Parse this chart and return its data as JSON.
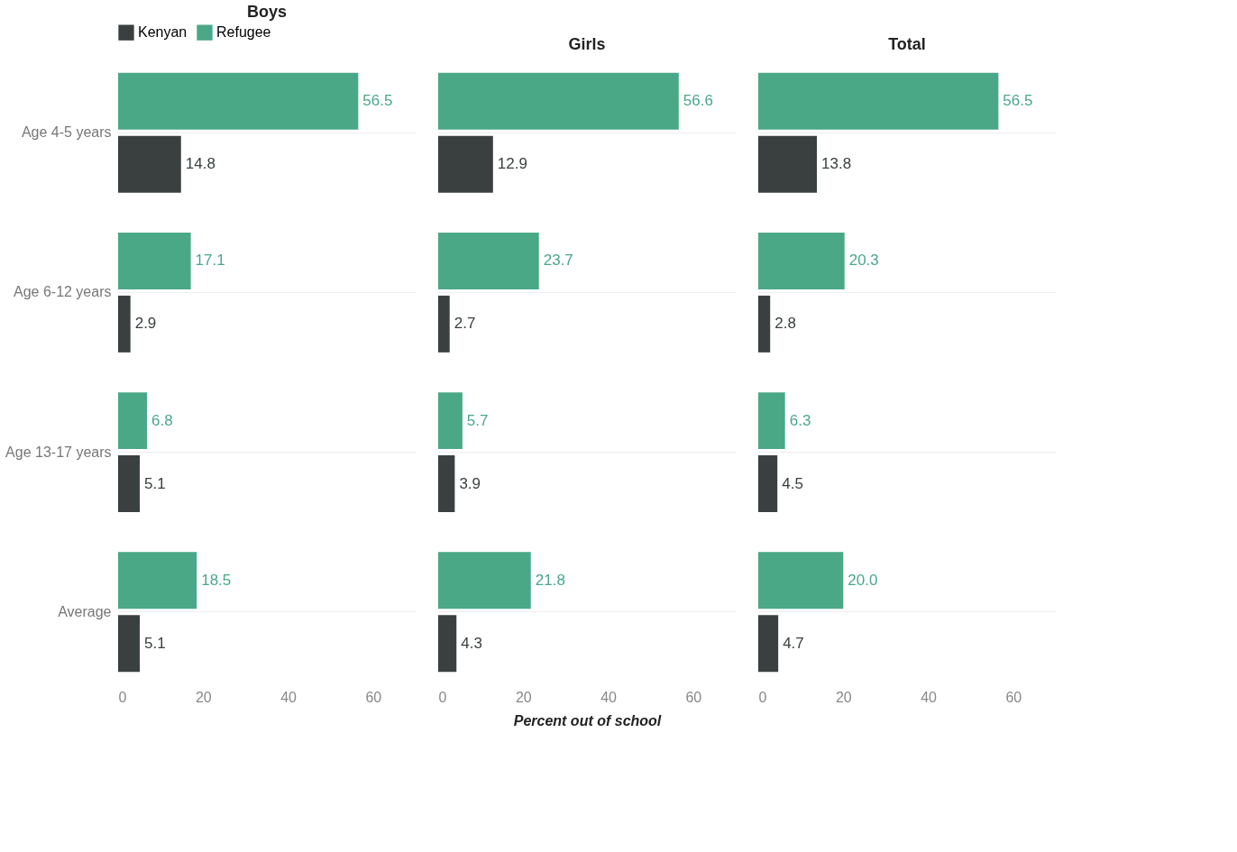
{
  "chart_data": [
    {
      "type": "bar",
      "title": "Boys",
      "orientation": "horizontal",
      "categories": [
        "Age 4-5 years",
        "Age 6-12 years",
        "Age 13-17 years",
        "Average"
      ],
      "xlim": [
        0,
        70
      ],
      "xticks": [
        0,
        20,
        40,
        60
      ],
      "grid": "y",
      "legend": "top left",
      "series": [
        {
          "name": "Kenyan",
          "color": "#3a4040",
          "values": [
            14.8,
            2.9,
            5.1,
            5.1
          ],
          "value_labels": [
            "14.8",
            "2.9",
            "5.1",
            "5.1"
          ]
        },
        {
          "name": "Refugee",
          "color": "#4aa887",
          "values": [
            56.5,
            17.1,
            6.8,
            18.5
          ],
          "value_labels": [
            "56.5",
            "17.1",
            "6.8",
            "18.5"
          ]
        }
      ]
    },
    {
      "type": "bar",
      "title": "Girls",
      "xlabel": "Percent out of school",
      "orientation": "horizontal",
      "tick_labels": "x",
      "categories": [
        null,
        null,
        null,
        null
      ],
      "xlim": [
        0,
        70
      ],
      "xticks": [
        0,
        20,
        40,
        60
      ],
      "grid": "y",
      "series": [
        {
          "color": "#3a4040",
          "values": [
            12.9,
            2.7,
            3.9,
            4.3
          ],
          "value_labels": [
            "12.9",
            "2.7",
            "3.9",
            "4.3"
          ]
        },
        {
          "color": "#4aa887",
          "values": [
            56.6,
            23.7,
            5.7,
            21.8
          ],
          "value_labels": [
            "56.6",
            "23.7",
            "5.7",
            "21.8"
          ]
        }
      ]
    },
    {
      "type": "bar",
      "title": "Total",
      "orientation": "horizontal",
      "tick_labels": "x",
      "categories": [
        null,
        null,
        null,
        null
      ],
      "xlim": [
        0,
        70
      ],
      "xticks": [
        0,
        20,
        40,
        60
      ],
      "grid": "y",
      "series": [
        {
          "color": "#3a4040",
          "values": [
            13.8,
            2.8,
            4.5,
            4.7
          ],
          "value_labels": [
            "13.8",
            "2.8",
            "4.5",
            "4.7"
          ]
        },
        {
          "color": "#4aa887",
          "values": [
            56.5,
            20.3,
            6.3,
            20.0
          ],
          "value_labels": [
            "56.5",
            "20.3",
            "6.3",
            "20.0"
          ]
        }
      ]
    }
  ]
}
